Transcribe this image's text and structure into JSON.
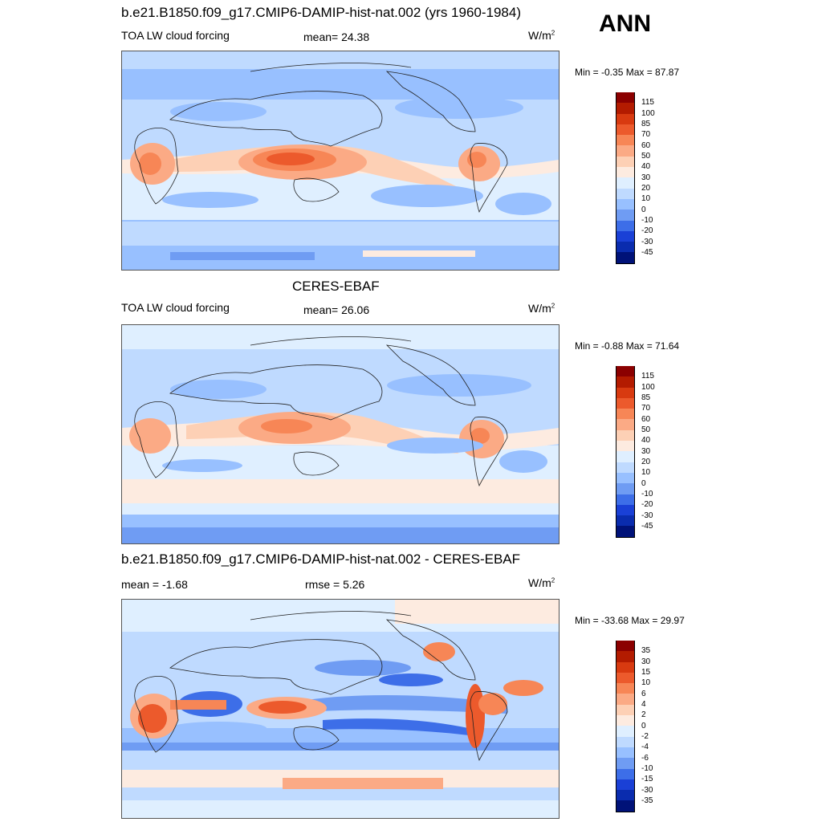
{
  "season": "ANN",
  "panels": [
    {
      "id": "model",
      "title": "b.e21.B1850.f09_g17.CMIP6-DAMIP-hist-nat.002 (yrs 1960-1984)",
      "left_label": "TOA LW cloud forcing",
      "center_label": "mean=  24.38",
      "units": "W/m",
      "units_sup": "2",
      "minmax": "Min =  -0.35 Max =  87.87",
      "colorbar": {
        "labels": [
          "115",
          "100",
          "85",
          "70",
          "60",
          "50",
          "40",
          "30",
          "20",
          "10",
          "0",
          "-10",
          "-20",
          "-30",
          "-45"
        ],
        "colors": [
          "#8b0000",
          "#b31b00",
          "#d83a10",
          "#ec5a2c",
          "#f78656",
          "#fbaa85",
          "#fdd0b5",
          "#fdebe0",
          "#dfefff",
          "#bfdaff",
          "#98c0ff",
          "#6f9cf3",
          "#3d6ee8",
          "#1a40d6",
          "#0a2cae",
          "#001278"
        ]
      }
    },
    {
      "id": "obs",
      "title": "CERES-EBAF",
      "left_label": "TOA LW cloud forcing",
      "center_label": "mean=  26.06",
      "units": "W/m",
      "units_sup": "2",
      "minmax": "Min =  -0.88 Max =  71.64",
      "colorbar": {
        "labels": [
          "115",
          "100",
          "85",
          "70",
          "60",
          "50",
          "40",
          "30",
          "20",
          "10",
          "0",
          "-10",
          "-20",
          "-30",
          "-45"
        ],
        "colors": [
          "#8b0000",
          "#b31b00",
          "#d83a10",
          "#ec5a2c",
          "#f78656",
          "#fbaa85",
          "#fdd0b5",
          "#fdebe0",
          "#dfefff",
          "#bfdaff",
          "#98c0ff",
          "#6f9cf3",
          "#3d6ee8",
          "#1a40d6",
          "#0a2cae",
          "#001278"
        ]
      }
    },
    {
      "id": "diff",
      "title": "b.e21.B1850.f09_g17.CMIP6-DAMIP-hist-nat.002 - CERES-EBAF",
      "left_label": "mean =  -1.68",
      "center_label": "rmse =   5.26",
      "units": "W/m",
      "units_sup": "2",
      "minmax": "Min = -33.68 Max =  29.97",
      "colorbar": {
        "labels": [
          "35",
          "30",
          "15",
          "10",
          "6",
          "4",
          "2",
          "0",
          "-2",
          "-4",
          "-6",
          "-10",
          "-15",
          "-30",
          "-35"
        ],
        "colors": [
          "#8b0000",
          "#b31b00",
          "#d83a10",
          "#ec5a2c",
          "#f78656",
          "#fbaa85",
          "#fdd0b5",
          "#fdebe0",
          "#dfefff",
          "#bfdaff",
          "#98c0ff",
          "#6f9cf3",
          "#3d6ee8",
          "#1a40d6",
          "#0a2cae",
          "#001278"
        ]
      }
    }
  ],
  "chart_data": [
    {
      "type": "heatmap",
      "title": "b.e21.B1850.f09_g17.CMIP6-DAMIP-hist-nat.002 (yrs 1960-1984)",
      "variable": "TOA LW cloud forcing",
      "units": "W/m2",
      "mean": 24.38,
      "min": -0.35,
      "max": 87.87,
      "contour_levels": [
        -45,
        -30,
        -20,
        -10,
        0,
        10,
        20,
        30,
        40,
        50,
        60,
        70,
        85,
        100,
        115
      ],
      "features": [
        "maximum over Maritime Continent / western Pacific warm pool",
        "enhanced values over central Africa and Amazon",
        "low values (10-20) over subtropical oceans",
        "Southern Ocean band ~20-30"
      ]
    },
    {
      "type": "heatmap",
      "title": "CERES-EBAF",
      "variable": "TOA LW cloud forcing",
      "units": "W/m2",
      "mean": 26.06,
      "min": -0.88,
      "max": 71.64,
      "contour_levels": [
        -45,
        -30,
        -20,
        -10,
        0,
        10,
        20,
        30,
        40,
        50,
        60,
        70,
        85,
        100,
        115
      ],
      "features": [
        "maximum over Maritime Continent",
        "ITCZ band 30-40",
        "Amazon and central Africa 40-60",
        "Southern Ocean ~30-40"
      ]
    },
    {
      "type": "heatmap",
      "title": "b.e21.B1850.f09_g17.CMIP6-DAMIP-hist-nat.002 - CERES-EBAF",
      "variable": "TOA LW cloud forcing difference",
      "units": "W/m2",
      "mean": -1.68,
      "rmse": 5.26,
      "min": -33.68,
      "max": 29.97,
      "contour_levels": [
        -35,
        -30,
        -15,
        -10,
        -6,
        -4,
        -2,
        0,
        2,
        4,
        6,
        10,
        15,
        30,
        35
      ],
      "features": [
        "positive bias over Maritime Continent, southern Africa, Andes",
        "negative bias over tropical Pacific and Indian Ocean",
        "negative bias along Southern Ocean"
      ]
    }
  ]
}
